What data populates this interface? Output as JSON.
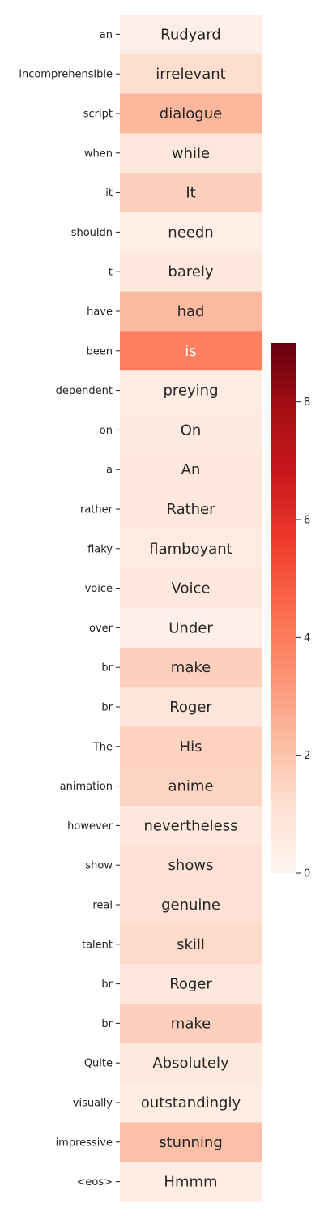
{
  "chart_data": {
    "type": "heatmap",
    "colormap": "Reds",
    "row_labels": [
      "an",
      "incomprehensible",
      "script",
      "when",
      "it",
      "shouldn",
      "t",
      "have",
      "been",
      "dependent",
      "on",
      "a",
      "rather",
      "flaky",
      "voice",
      "over",
      "br",
      "br",
      "The",
      "animation",
      "however",
      "show",
      "real",
      "talent",
      "br",
      "br",
      "Quite",
      "visually",
      "impressive",
      "<eos>"
    ],
    "cell_text": [
      "Rudyard",
      "irrelevant",
      "dialogue",
      "while",
      "It",
      "needn",
      "barely",
      "had",
      "is",
      "preying",
      "On",
      "An",
      "Rather",
      "flamboyant",
      "Voice",
      "Under",
      "make",
      "Roger",
      "His",
      "anime",
      "nevertheless",
      "shows",
      "genuine",
      "skill",
      "Roger",
      "make",
      "Absolutely",
      "outstandingly",
      "stunning",
      "Hmmm"
    ],
    "values": [
      0.35,
      1.2,
      2.35,
      0.7,
      1.6,
      0.4,
      0.75,
      2.25,
      3.9,
      0.45,
      0.6,
      0.75,
      0.75,
      0.55,
      0.7,
      0.3,
      1.6,
      0.85,
      1.55,
      1.5,
      0.7,
      1.05,
      1.05,
      1.3,
      0.75,
      1.6,
      0.65,
      0.45,
      2.1,
      0.45
    ],
    "colorbar": {
      "min": 0,
      "max": 9.0,
      "ticks": [
        0,
        2,
        4,
        6,
        8
      ],
      "tick_labels": [
        "0",
        "2",
        "4",
        "6",
        "8"
      ]
    }
  }
}
